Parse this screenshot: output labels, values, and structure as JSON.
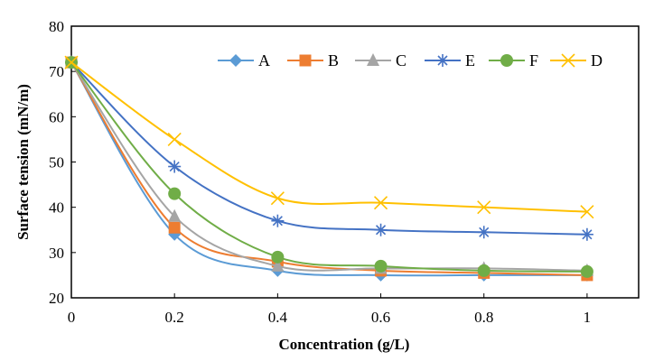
{
  "chart_data": {
    "type": "line",
    "title": "",
    "xlabel": "Concentration (g/L)",
    "ylabel": "Surface tension (mN/m)",
    "xlim": [
      0,
      1.1
    ],
    "ylim": [
      20,
      80
    ],
    "x_ticks": [
      0,
      0.2,
      0.4,
      0.6,
      0.8,
      1
    ],
    "x_tick_labels": [
      "0",
      "0.2",
      "0.4",
      "0.6",
      "0.8",
      "1"
    ],
    "y_ticks": [
      20,
      30,
      40,
      50,
      60,
      70,
      80
    ],
    "y_tick_labels": [
      "20",
      "30",
      "40",
      "50",
      "60",
      "70",
      "80"
    ],
    "grid": false,
    "legend_position": "top-right",
    "smooth": true,
    "x": [
      0,
      0.2,
      0.4,
      0.6,
      0.8,
      1
    ],
    "series": [
      {
        "name": "A",
        "color": "#5B9BD5",
        "marker": "diamond",
        "values": [
          72,
          34,
          26,
          25,
          25,
          25
        ]
      },
      {
        "name": "B",
        "color": "#ED7D31",
        "marker": "square",
        "values": [
          72,
          35.5,
          28,
          26,
          25.5,
          25
        ]
      },
      {
        "name": "C",
        "color": "#A5A5A5",
        "marker": "triangle",
        "values": [
          72,
          38,
          27,
          26.5,
          26.5,
          26
        ]
      },
      {
        "name": "E",
        "color": "#4472C4",
        "marker": "star",
        "values": [
          72,
          49,
          37,
          35,
          34.5,
          34
        ]
      },
      {
        "name": "F",
        "color": "#70AD47",
        "marker": "circle",
        "values": [
          72,
          43,
          29,
          27,
          26,
          25.8
        ]
      },
      {
        "name": "D",
        "color": "#FFC000",
        "marker": "x",
        "values": [
          72,
          55,
          42,
          41,
          40,
          39
        ]
      }
    ]
  }
}
